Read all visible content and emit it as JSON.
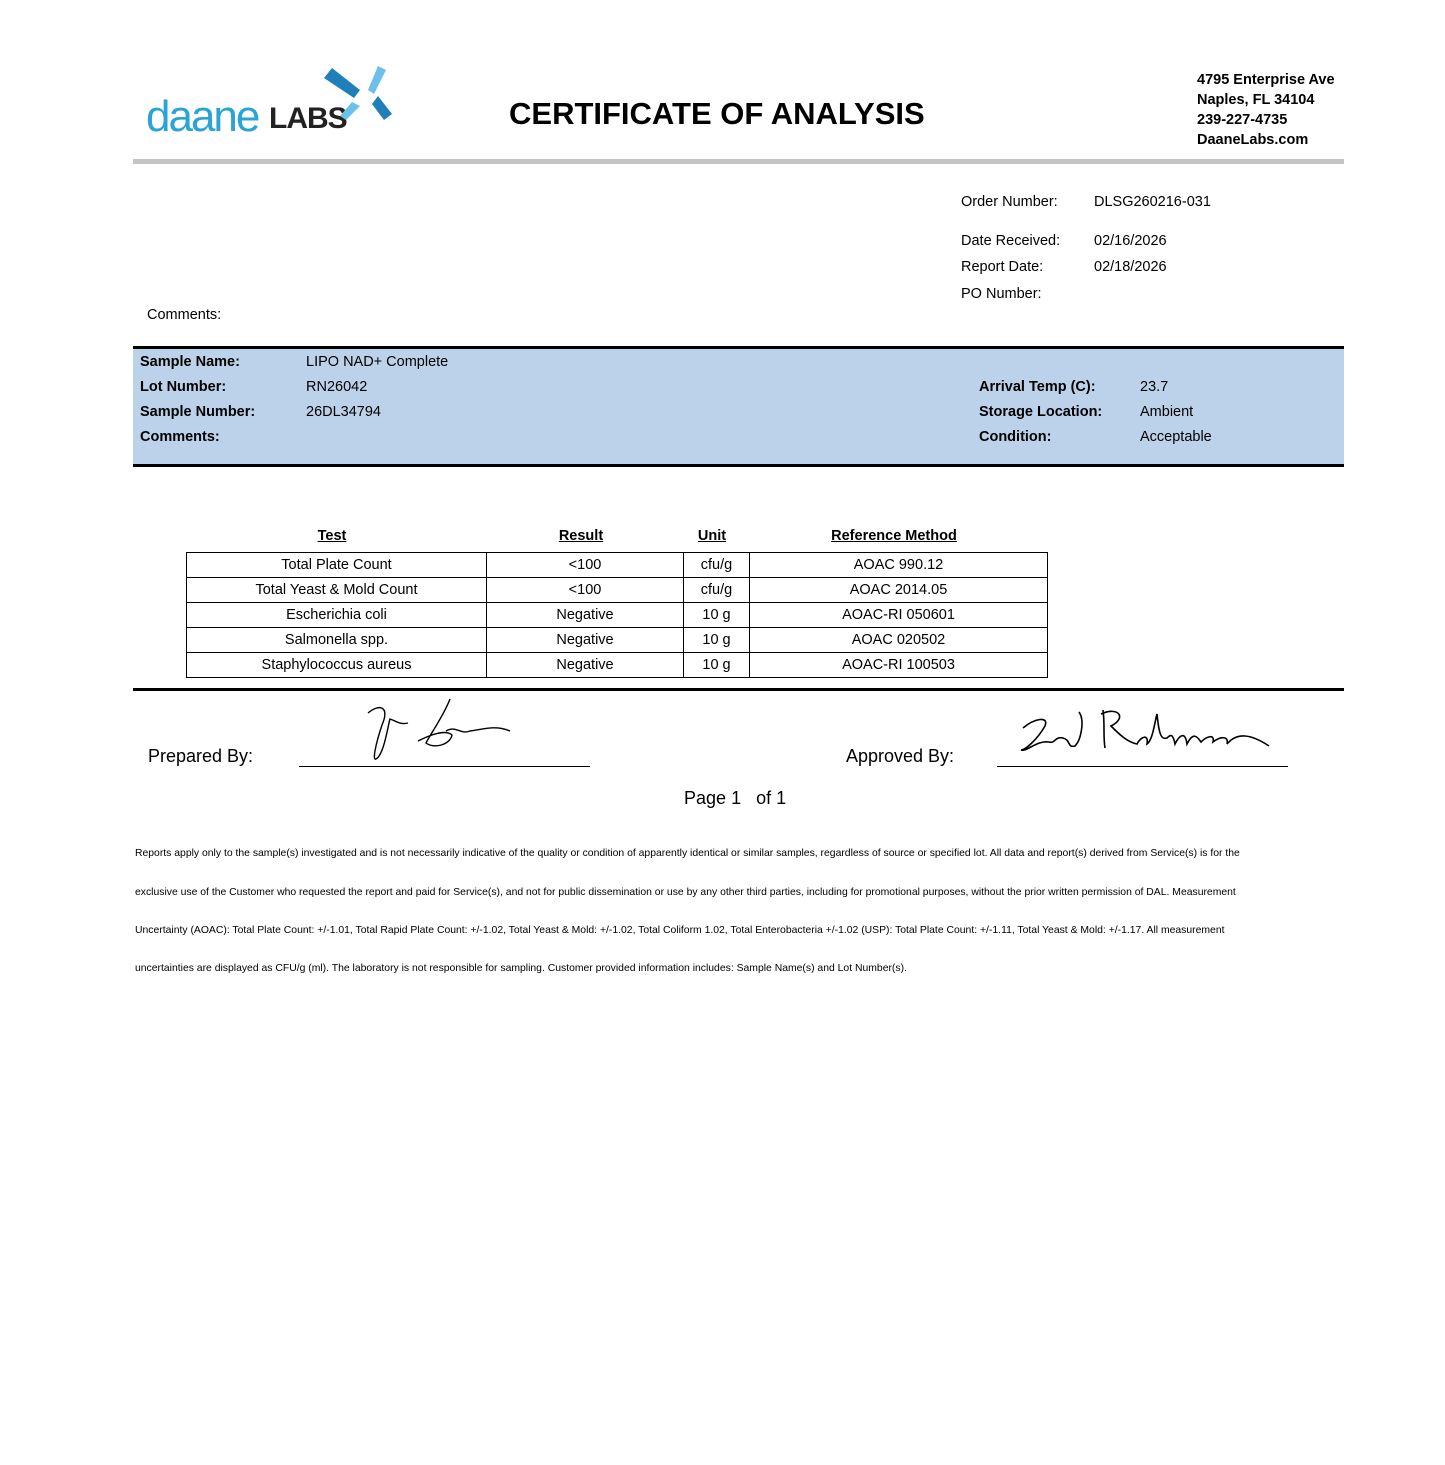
{
  "header": {
    "logo_text": "daaneLABS",
    "title": "CERTIFICATE OF ANALYSIS",
    "address": [
      "4795 Enterprise Ave",
      "Naples, FL 34104",
      "239-227-4735",
      "DaaneLabs.com"
    ],
    "brand_color": "#2aa3d8"
  },
  "order": {
    "order_number_label": "Order Number:",
    "order_number": "DLSG260216-031",
    "date_received_label": "Date Received:",
    "date_received": "02/16/2026",
    "report_date_label": "Report Date:",
    "report_date": "02/18/2026",
    "po_number_label": "PO Number:",
    "po_number": "",
    "comments_label": "Comments:"
  },
  "sample": {
    "name_label": "Sample Name:",
    "name": "LIPO NAD+ Complete",
    "lot_label": "Lot Number:",
    "lot": "RN26042",
    "number_label": "Sample Number:",
    "number": "26DL34794",
    "comments_label": "Comments:",
    "temp_label": "Arrival Temp (C):",
    "temp": "23.7",
    "storage_label": "Storage Location:",
    "storage": "Ambient",
    "condition_label": "Condition:",
    "condition": "Acceptable",
    "band_color": "#bcd2ea"
  },
  "results": {
    "headers": [
      "Test",
      "Result",
      "Unit",
      "Reference Method"
    ],
    "rows": [
      [
        "Total Plate Count",
        "<100",
        "cfu/g",
        "AOAC 990.12"
      ],
      [
        "Total Yeast & Mold Count",
        "<100",
        "cfu/g",
        "AOAC 2014.05"
      ],
      [
        "Escherichia coli",
        "Negative",
        "10 g",
        "AOAC-RI 050601"
      ],
      [
        "Salmonella spp.",
        "Negative",
        "10 g",
        "AOAC 020502"
      ],
      [
        "Staphylococcus aureus",
        "Negative",
        "10 g",
        "AOAC-RI 100503"
      ]
    ]
  },
  "signatures": {
    "prepared_label": "Prepared By:",
    "approved_label": "Approved By:"
  },
  "pagination": {
    "page_label": "Page",
    "page": "1",
    "of_label": "of",
    "total": "1"
  },
  "disclaimer": [
    "Reports apply only to the sample(s) investigated and is not necessarily indicative of the quality or condition of apparently identical or similar samples, regardless of source or specified lot. All data and report(s) derived from Service(s) is for the",
    "exclusive use of the Customer who requested the report and paid for Service(s), and not for public dissemination or use by any other third parties, including for promotional purposes, without the prior written permission of DAL. Measurement",
    "Uncertainty (AOAC): Total Plate Count: +/-1.01, Total Rapid Plate Count: +/-1.02, Total Yeast & Mold: +/-1.02, Total Coliform 1.02, Total Enterobacteria +/-1.02 (USP): Total Plate Count: +/-1.11, Total Yeast & Mold: +/-1.17. All measurement",
    "uncertainties are displayed as CFU/g (ml). The laboratory is not responsible for sampling. Customer provided information includes: Sample Name(s) and Lot Number(s)."
  ]
}
